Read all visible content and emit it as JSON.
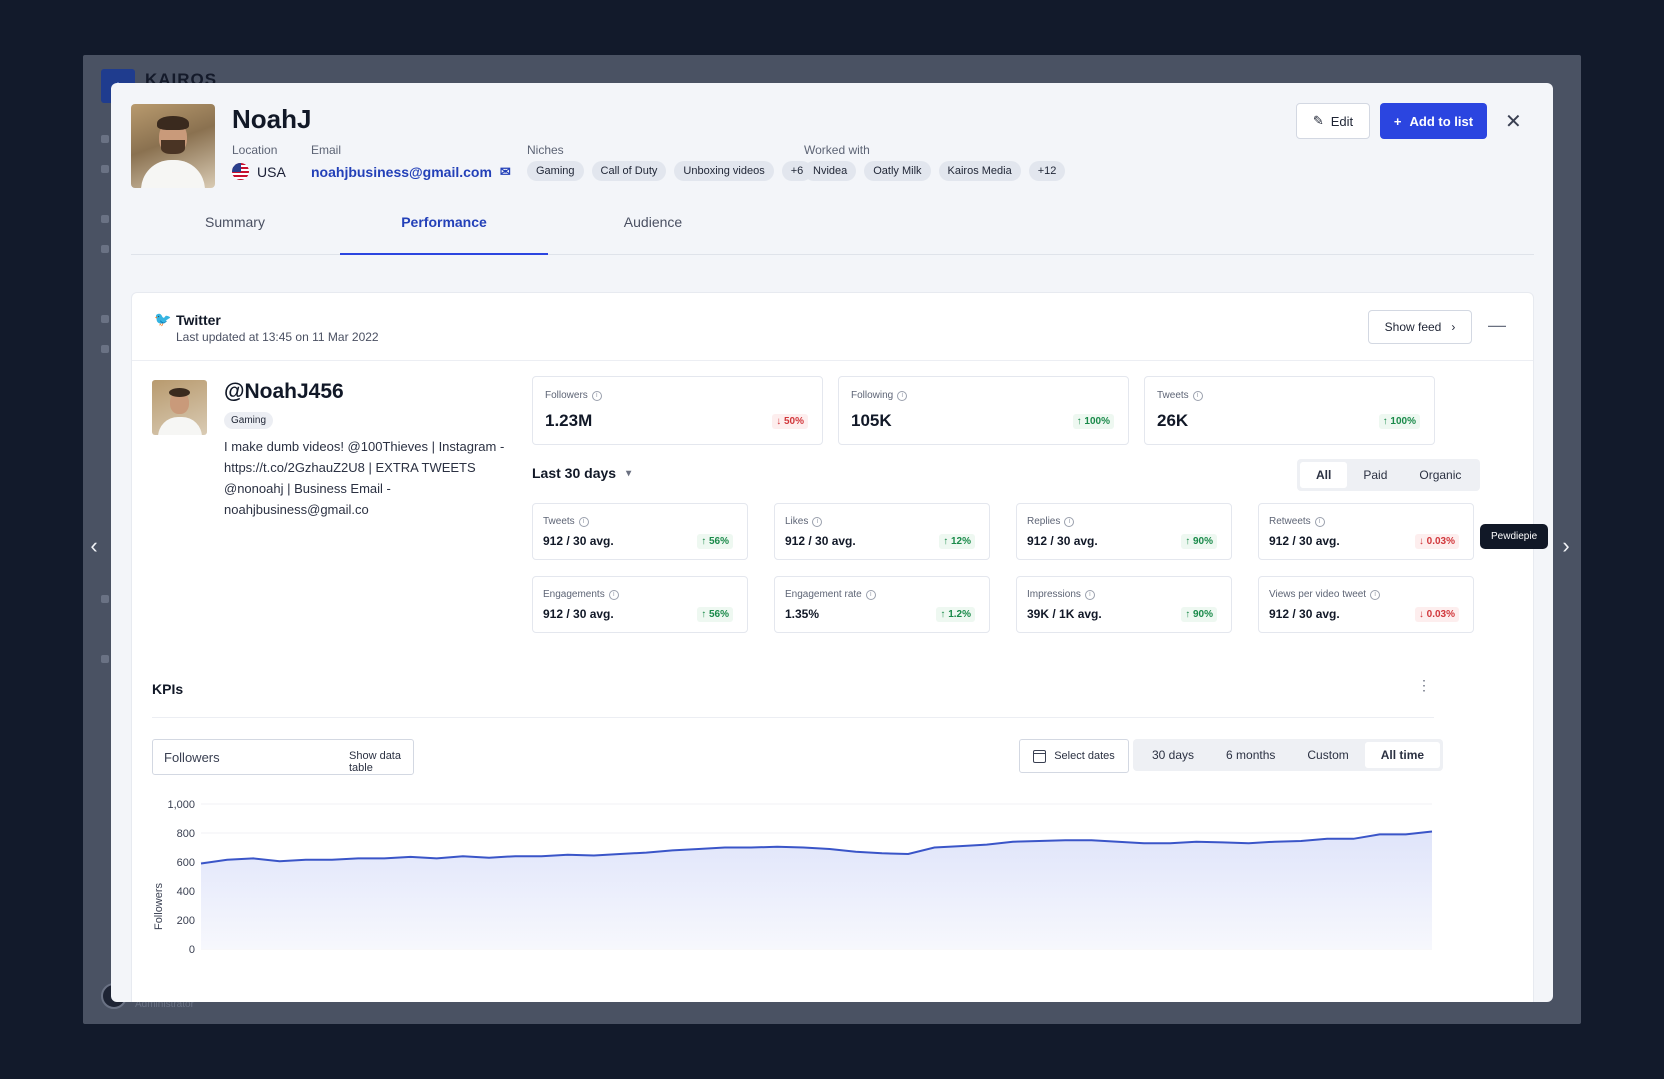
{
  "background": {
    "brand": "KAIROS",
    "admin": "Administrator"
  },
  "profile": {
    "name": "NoahJ",
    "location_label": "Location",
    "location": "USA",
    "email_label": "Email",
    "email": "noahjbusiness@gmail.com",
    "niches_label": "Niches",
    "niches": [
      "Gaming",
      "Call of Duty",
      "Unboxing videos",
      "+6"
    ],
    "worked_with_label": "Worked with",
    "worked_with": [
      "Nvidea",
      "Oatly Milk",
      "Kairos Media",
      "+12"
    ]
  },
  "actions": {
    "edit": "Edit",
    "add_to_list": "Add to list"
  },
  "tabs": [
    "Summary",
    "Performance",
    "Audience"
  ],
  "twitter": {
    "title": "Twitter",
    "updated": "Last updated at 13:45 on 11 Mar 2022",
    "show_feed": "Show feed",
    "handle": "@NoahJ456",
    "chip": "Gaming",
    "bio": "I make dumb videos! @100Thieves | Instagram - https://t.co/2GzhauZ2U8 | EXTRA TWEETS @nonoahj | Business Email - noahjbusiness@gmail.co"
  },
  "top_stats": [
    {
      "label": "Followers",
      "value": "1.23M",
      "change": "50%",
      "dir": "down"
    },
    {
      "label": "Following",
      "value": "105K",
      "change": "100%",
      "dir": "up"
    },
    {
      "label": "Tweets",
      "value": "26K",
      "change": "100%",
      "dir": "up"
    }
  ],
  "period": "Last 30 days",
  "filter": {
    "options": [
      "All",
      "Paid",
      "Organic"
    ],
    "selected": "All"
  },
  "metrics": [
    {
      "label": "Tweets",
      "value": "912 / 30 avg.",
      "change": "56%",
      "dir": "up"
    },
    {
      "label": "Likes",
      "value": "912 / 30 avg.",
      "change": "12%",
      "dir": "up"
    },
    {
      "label": "Replies",
      "value": "912 / 30 avg.",
      "change": "90%",
      "dir": "up"
    },
    {
      "label": "Retweets",
      "value": "912 / 30 avg.",
      "change": "0.03%",
      "dir": "down"
    },
    {
      "label": "Engagements",
      "value": "912 / 30 avg.",
      "change": "56%",
      "dir": "up"
    },
    {
      "label": "Engagement rate",
      "value": "1.35%",
      "change": "1.2%",
      "dir": "up"
    },
    {
      "label": "Impressions",
      "value": "39K / 1K avg.",
      "change": "90%",
      "dir": "up"
    },
    {
      "label": "Views per video tweet",
      "value": "912 / 30 avg.",
      "change": "0.03%",
      "dir": "down"
    }
  ],
  "tooltip": "Pewdiepie",
  "kpis": {
    "title": "KPIs",
    "metric": "Followers",
    "show_data_table": "Show data table",
    "select_dates": "Select dates",
    "ranges": [
      "30 days",
      "6 months",
      "Custom",
      "All time"
    ],
    "selected_range": "All time"
  },
  "colors": {
    "accent": "#2b45e0",
    "link": "#2340b8",
    "up": "#1a8a4a",
    "down": "#d1373b",
    "line": "#3a55c8"
  },
  "chart_data": {
    "type": "area",
    "ylabel": "Followers",
    "ylim": [
      0,
      1000
    ],
    "yticks": [
      0,
      200,
      400,
      600,
      800,
      1000
    ],
    "y_tick_labels": [
      "0",
      "200",
      "400",
      "600",
      "800",
      "1,000"
    ],
    "series": [
      {
        "values": [
          590,
          615,
          625,
          605,
          615,
          615,
          625,
          625,
          635,
          625,
          640,
          630,
          640,
          640,
          650,
          645,
          655,
          665,
          680,
          690,
          700,
          700,
          705,
          700,
          690,
          670,
          660,
          655,
          700,
          710,
          720,
          740,
          745,
          750,
          750,
          740,
          730,
          730,
          740,
          735,
          730,
          740,
          745,
          760,
          760,
          790,
          790,
          810
        ]
      }
    ]
  }
}
